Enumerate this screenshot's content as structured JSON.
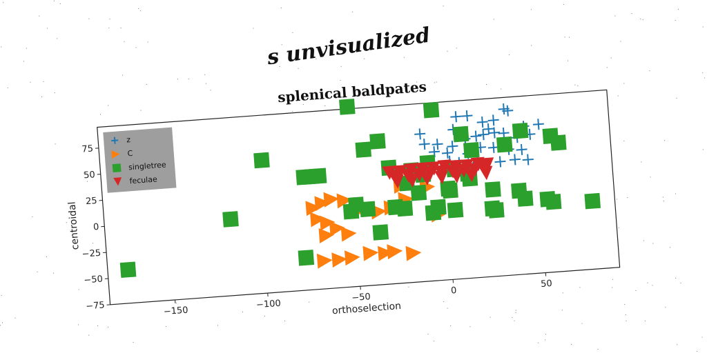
{
  "suptitle": "s unvisualized",
  "chart_data": {
    "type": "scatter",
    "title": "splenical baldpates",
    "xlabel": "orthoselection",
    "ylabel": "centroidal",
    "xlim": [
      -185,
      90
    ],
    "ylim": [
      -75,
      95
    ],
    "xticks": [
      -150,
      -100,
      -50,
      0,
      50
    ],
    "yticks": [
      -75,
      -50,
      -25,
      0,
      25,
      50,
      75
    ],
    "legend_position": "top-left",
    "series": [
      {
        "name": "z",
        "marker": "plus",
        "color": "#1f77b4",
        "points": [
          [
            8,
            80
          ],
          [
            14,
            80
          ],
          [
            22,
            73
          ],
          [
            28,
            74
          ],
          [
            34,
            84
          ],
          [
            36,
            82
          ],
          [
            44,
            66
          ],
          [
            -12,
            66
          ],
          [
            -10,
            56
          ],
          [
            -3,
            55
          ],
          [
            5,
            52
          ],
          [
            12,
            58
          ],
          [
            18,
            60
          ],
          [
            22,
            61
          ],
          [
            28,
            62
          ],
          [
            33,
            61
          ],
          [
            40,
            56
          ],
          [
            47,
            58
          ],
          [
            52,
            67
          ],
          [
            -5,
            48
          ],
          [
            2,
            46
          ],
          [
            13,
            44
          ],
          [
            20,
            49
          ],
          [
            27,
            48
          ],
          [
            35,
            45
          ],
          [
            42,
            44
          ],
          [
            3,
            38
          ],
          [
            8,
            36
          ],
          [
            18,
            35
          ],
          [
            30,
            34
          ],
          [
            38,
            35
          ],
          [
            45,
            34
          ],
          [
            6,
            68
          ],
          [
            25,
            66
          ]
        ]
      },
      {
        "name": "C",
        "marker": "triangle-right",
        "color": "#ff7f0e",
        "points": [
          [
            -72,
            3
          ],
          [
            -67,
            7
          ],
          [
            -62,
            10
          ],
          [
            -55,
            8
          ],
          [
            -70,
            -8
          ],
          [
            -65,
            -12
          ],
          [
            -60,
            -18
          ],
          [
            -66,
            -24
          ],
          [
            -54,
            -24
          ],
          [
            -47,
            -2
          ],
          [
            -37,
            -5
          ],
          [
            -43,
            -44
          ],
          [
            -35,
            -45
          ],
          [
            -30,
            -44
          ],
          [
            -20,
            -47
          ],
          [
            -53,
            -47
          ],
          [
            -60,
            -48
          ],
          [
            -68,
            -48
          ],
          [
            -24,
            18
          ],
          [
            -10,
            15
          ],
          [
            -5,
            -12
          ],
          [
            -30,
            -2
          ],
          [
            -22,
            5
          ]
        ]
      },
      {
        "name": "singletree",
        "marker": "square",
        "color": "#2ca02c",
        "points": [
          [
            -174,
            -43
          ],
          [
            -117,
            -2
          ],
          [
            -98,
            52
          ],
          [
            -76,
            33
          ],
          [
            -72,
            33
          ],
          [
            -68,
            33
          ],
          [
            -78,
            -44
          ],
          [
            -50,
            97
          ],
          [
            -43,
            55
          ],
          [
            -35,
            62
          ],
          [
            -30,
            36
          ],
          [
            -21,
            20
          ],
          [
            -9,
            38
          ],
          [
            -5,
            88
          ],
          [
            2,
            10
          ],
          [
            -8,
            -10
          ],
          [
            -5,
            -5
          ],
          [
            4,
            -9
          ],
          [
            12,
            25
          ],
          [
            10,
            63
          ],
          [
            15,
            47
          ],
          [
            13,
            20
          ],
          [
            25,
            8
          ],
          [
            33,
            50
          ],
          [
            42,
            62
          ],
          [
            39,
            5
          ],
          [
            42,
            -3
          ],
          [
            54,
            -5
          ],
          [
            57,
            -8
          ],
          [
            58,
            55
          ],
          [
            62,
            48
          ],
          [
            78,
            -10
          ],
          [
            26,
            -12
          ],
          [
            1,
            12
          ],
          [
            -15,
            10
          ],
          [
            -28,
            -2
          ],
          [
            -23,
            -4
          ],
          [
            -37,
            -25
          ],
          [
            -43,
            -2
          ],
          [
            -18,
            32
          ],
          [
            -12,
            27
          ],
          [
            5,
            30
          ],
          [
            24,
            -10
          ],
          [
            -49,
            3
          ],
          [
            -52,
            -3
          ]
        ]
      },
      {
        "name": "feculae",
        "marker": "triangle-down",
        "color": "#d62728",
        "points": [
          [
            -30,
            31
          ],
          [
            -24,
            31
          ],
          [
            -18,
            32
          ],
          [
            -12,
            32
          ],
          [
            -6,
            32
          ],
          [
            0,
            33
          ],
          [
            6,
            32
          ],
          [
            12,
            32
          ],
          [
            18,
            33
          ],
          [
            23,
            32
          ],
          [
            -27,
            27
          ],
          [
            -20,
            27
          ],
          [
            -14,
            27
          ],
          [
            -8,
            28
          ],
          [
            -2,
            28
          ],
          [
            4,
            28
          ],
          [
            10,
            28
          ],
          [
            16,
            28
          ],
          [
            21,
            28
          ],
          [
            -26,
            22
          ],
          [
            -18,
            22
          ],
          [
            -10,
            23
          ],
          [
            -2,
            23
          ],
          [
            6,
            23
          ],
          [
            14,
            23
          ],
          [
            22,
            24
          ]
        ]
      }
    ]
  }
}
